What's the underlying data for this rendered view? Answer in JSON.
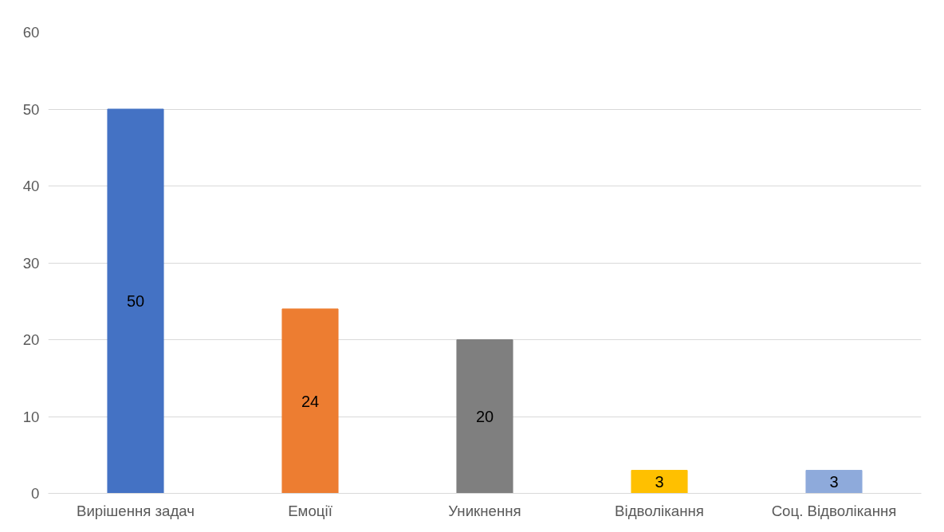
{
  "chart_data": {
    "type": "bar",
    "categories": [
      "Вирішення задач",
      "Емоції",
      "Уникнення",
      "Відволікання",
      "Соц. Відволікання"
    ],
    "values": [
      50,
      24,
      20,
      3,
      3
    ],
    "colors": [
      "#4472c4",
      "#ed7d31",
      "#7f7f7f",
      "#ffc000",
      "#8eaadb"
    ],
    "ylim": [
      0,
      60
    ],
    "yticks": [
      0,
      10,
      20,
      30,
      40,
      50,
      60
    ],
    "grid": "y",
    "data_labels": true
  }
}
